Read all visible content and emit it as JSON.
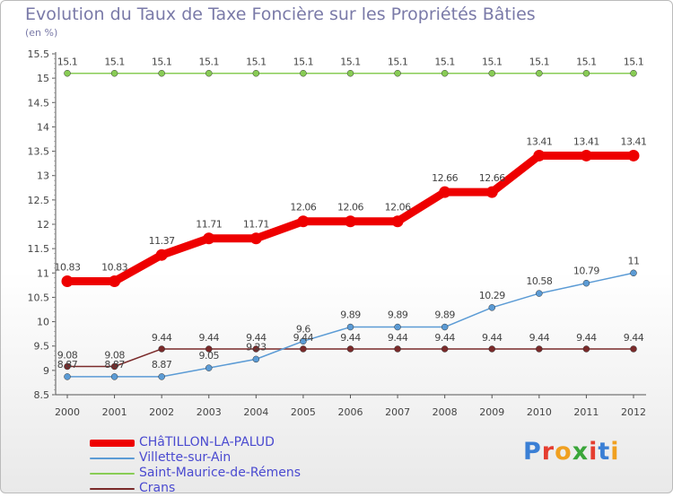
{
  "header": {
    "title": "Evolution du Taux de Taxe Foncière sur les Propriétés Bâties",
    "unit": "(en %)"
  },
  "logo": {
    "text": "Proxiti"
  },
  "colors": {
    "title": "#7a7aa8",
    "axis": "#555555",
    "tick_label": "#444444",
    "legend_text": "#4a4ad0"
  },
  "chart_data": {
    "type": "line",
    "title": "Evolution du Taux de Taxe Foncière sur les Propriétés Bâties",
    "ylabel": "(en %)",
    "xlabel": "",
    "x": [
      "2000",
      "2001",
      "2002",
      "2003",
      "2004",
      "2005",
      "2006",
      "2007",
      "2008",
      "2009",
      "2010",
      "2011",
      "2012"
    ],
    "ylim": [
      8.5,
      15.5
    ],
    "yticks": [
      "8.5",
      "9",
      "9.5",
      "10",
      "10.5",
      "11",
      "11.5",
      "12",
      "12.5",
      "13",
      "13.5",
      "14",
      "14.5",
      "15",
      "15.5"
    ],
    "grid": false,
    "legend_position": "bottom-left",
    "series": [
      {
        "name": "CHâTILLON-LA-PALUD",
        "color": "#ee0000",
        "values": [
          10.83,
          10.83,
          11.37,
          11.71,
          11.71,
          12.06,
          12.06,
          12.06,
          12.66,
          12.66,
          13.41,
          13.41,
          13.41
        ],
        "labels": [
          "10.83",
          "10.83",
          "11.37",
          "11.71",
          "11.71",
          "12.06",
          "12.06",
          "12.06",
          "12.66",
          "12.66",
          "13.41",
          "13.41",
          "13.41"
        ]
      },
      {
        "name": "Villette-sur-Ain",
        "color": "#5b9bd5",
        "values": [
          8.87,
          8.87,
          8.87,
          9.05,
          9.23,
          9.6,
          9.89,
          9.89,
          9.89,
          10.29,
          10.58,
          10.79,
          11
        ],
        "labels": [
          "8.87",
          "8.87",
          "8.87",
          "9.05",
          "9.23",
          "9.6",
          "9.89",
          "9.89",
          "9.89",
          "10.29",
          "10.58",
          "10.79",
          "11"
        ]
      },
      {
        "name": "Saint-Maurice-de-Rémens",
        "color": "#88cc55",
        "values": [
          15.1,
          15.1,
          15.1,
          15.1,
          15.1,
          15.1,
          15.1,
          15.1,
          15.1,
          15.1,
          15.1,
          15.1,
          15.1
        ],
        "labels": [
          "15.1",
          "15.1",
          "15.1",
          "15.1",
          "15.1",
          "15.1",
          "15.1",
          "15.1",
          "15.1",
          "15.1",
          "15.1",
          "15.1",
          "15.1"
        ]
      },
      {
        "name": "Crans",
        "color": "#7a2a2a",
        "values": [
          9.08,
          9.08,
          9.44,
          9.44,
          9.44,
          9.44,
          9.44,
          9.44,
          9.44,
          9.44,
          9.44,
          9.44,
          9.44
        ],
        "labels": [
          "9.08",
          "9.08",
          "9.44",
          "9.44",
          "9.44",
          "9.44",
          "9.44",
          "9.44",
          "9.44",
          "9.44",
          "9.44",
          "9.44",
          "9.44"
        ]
      }
    ]
  }
}
